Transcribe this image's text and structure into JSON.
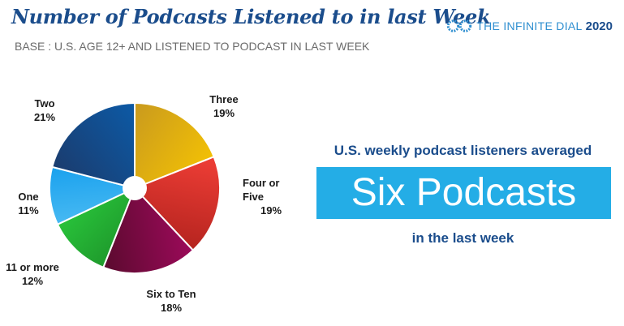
{
  "header": {
    "title": "Number of Podcasts Listened to in last Week",
    "subtitle": "BASE : U.S. AGE 12+ AND LISTENED TO PODCAST IN LAST WEEK"
  },
  "brand": {
    "name": "THE INFINITE DIAL",
    "year": "2020",
    "icon": "infinite-dial-logo"
  },
  "callout": {
    "top": "U.S. weekly podcast listeners averaged",
    "main": "Six Podcasts",
    "bottom": "in the last week",
    "box_color": "#24ade6"
  },
  "chart_data": {
    "type": "pie",
    "title": "Number of Podcasts Listened to in last Week",
    "slices": [
      {
        "name": "Three",
        "label_lines": [
          "Three"
        ],
        "value": 19,
        "label": "19%",
        "colors": [
          "#c99a1e",
          "#f2c005"
        ]
      },
      {
        "name": "Four or Five",
        "label_lines": [
          "Four or",
          "Five"
        ],
        "value": 19,
        "label": "19%",
        "colors": [
          "#ef3e36",
          "#b5241f"
        ]
      },
      {
        "name": "Six to Ten",
        "label_lines": [
          "Six to Ten"
        ],
        "value": 18,
        "label": "18%",
        "colors": [
          "#9c0a5a",
          "#5a0a2e"
        ]
      },
      {
        "name": "11 or more",
        "label_lines": [
          "11 or more"
        ],
        "value": 12,
        "label": "12%",
        "colors": [
          "#1f9a2c",
          "#28c23a"
        ]
      },
      {
        "name": "One",
        "label_lines": [
          "One"
        ],
        "value": 11,
        "label": "11%",
        "colors": [
          "#47b9f2",
          "#1aa1ee"
        ]
      },
      {
        "name": "Two",
        "label_lines": [
          "Two"
        ],
        "value": 21,
        "label": "21%",
        "colors": [
          "#1b3c6e",
          "#0c5aa6"
        ]
      }
    ]
  }
}
